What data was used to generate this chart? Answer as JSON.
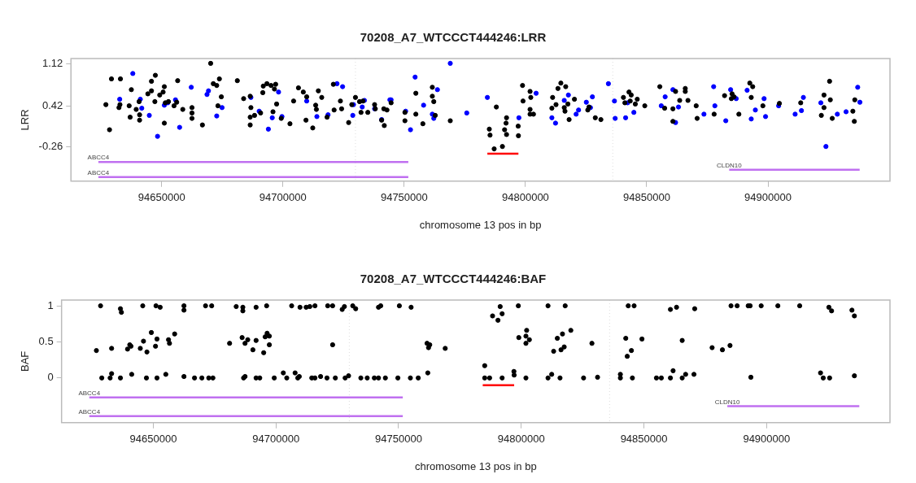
{
  "chart_data": [
    {
      "type": "scatter",
      "title": "70208_A7_WTCCCT444246:LRR",
      "xlabel": "chromosome 13 pos in bp",
      "ylabel": "LRR",
      "xlim": [
        94612600,
        94950300
      ],
      "xticks": [
        94650000,
        94700000,
        94750000,
        94800000,
        94850000,
        94900000
      ],
      "ylim": [
        -0.84,
        1.21
      ],
      "yticks": [
        -0.26,
        0.42,
        1.12
      ],
      "grid": false,
      "legend": false,
      "ref_lines": [
        {
          "axis": "x",
          "value": 94729900,
          "color": "#dddddd",
          "line_style": "dotted"
        },
        {
          "axis": "x",
          "value": 94836000,
          "color": "#dddddd",
          "line_style": "dotted"
        }
      ],
      "series": [
        {
          "color": "#000000",
          "marker": "circle",
          "x": [
            94627000,
            94628500,
            94629300,
            94632400,
            94633000,
            94632800,
            94636600,
            94637000,
            94637500,
            94639500,
            94640700,
            94640900,
            94640900,
            94644300,
            94645800,
            94645800,
            94647200,
            94647400,
            94649200,
            94650600,
            94651100,
            94651500,
            94651100,
            94652800,
            94655100,
            94656200,
            94656600,
            94658700,
            94662500,
            94662500,
            94662500,
            94666800,
            94670200,
            94671300,
            94672700,
            94673800,
            94673200,
            94674600,
            94681200,
            94683800,
            94686500,
            94686800,
            94686500,
            94686500,
            94688300,
            94690800,
            94691700,
            94691900,
            94693400,
            94695100,
            94697000,
            94696500,
            94697400,
            94695900,
            94699300,
            94702900,
            94704400,
            94706400,
            94708400,
            94709800,
            94709500,
            94712300,
            94713500,
            94713800,
            94714600,
            94716000,
            94718200,
            94720800,
            94721100,
            94723700,
            94724200,
            94727100,
            94728400,
            94729900,
            94731600,
            94732200,
            94733000,
            94735000,
            94737800,
            94738100,
            94740700,
            94741800,
            94741600,
            94742900,
            94744600,
            94750300,
            94750300,
            94754800,
            94754800,
            94757700,
            94761600,
            94761600,
            94762200,
            94762800,
            94769000,
            94788000,
            94785100,
            94785400,
            94787100,
            94790500,
            94792200,
            94792000,
            94791400,
            94792200,
            94797000,
            94797100,
            94798800,
            94799000,
            94801900,
            94802200,
            94801900,
            94801900,
            94803300,
            94811200,
            94810900,
            94812600,
            94813400,
            94814600,
            94816600,
            94816000,
            94816300,
            94817500,
            94818000,
            94820200,
            94825700,
            94826200,
            94828800,
            94831100,
            94840400,
            94841000,
            94842700,
            94843600,
            94843200,
            94845300,
            94846100,
            94849200,
            94855400,
            94857400,
            94860800,
            94860800,
            94861900,
            94863600,
            94865900,
            94865900,
            94867000,
            94870400,
            94870800,
            94877800,
            94882100,
            94885200,
            94884900,
            94886000,
            94888000,
            94892500,
            94893700,
            94893100,
            94897900,
            94904700,
            94913500,
            94922000,
            94923100,
            94923100,
            94925400,
            94925700,
            94926500,
            94935000,
            94935600,
            94935800
          ],
          "values": [
            0.44,
            0.02,
            0.87,
            0.39,
            0.87,
            0.44,
            0.42,
            0.23,
            0.69,
            0.36,
            0.49,
            0.27,
            0.18,
            0.62,
            0.83,
            0.67,
            0.49,
            0.93,
            0.6,
            0.65,
            0.74,
            0.47,
            0.13,
            0.49,
            0.42,
            0.48,
            0.84,
            0.36,
            0.39,
            0.3,
            0.21,
            0.1,
            1.13,
            0.79,
            0.76,
            0.87,
            0.42,
            0.57,
            0.84,
            0.54,
            0.58,
            0.39,
            0.23,
            0.1,
            0.26,
            0.3,
            0.64,
            0.75,
            0.79,
            0.76,
            0.78,
            0.7,
            0.45,
            0.32,
            0.21,
            0.12,
            0.5,
            0.72,
            0.65,
            0.57,
            0.18,
            0.05,
            0.43,
            0.36,
            0.67,
            0.56,
            0.23,
            0.78,
            0.35,
            0.5,
            0.37,
            0.14,
            0.44,
            0.56,
            0.49,
            0.31,
            0.5,
            0.31,
            0.44,
            0.37,
            0.18,
            0.09,
            0.37,
            0.35,
            0.47,
            0.31,
            0.17,
            0.63,
            0.28,
            0.12,
            0.73,
            0.58,
            0.49,
            0.26,
            0.17,
            0.4,
            0.03,
            -0.07,
            -0.3,
            -0.26,
            0.22,
            0.13,
            0.02,
            -0.06,
            0.08,
            -0.08,
            0.76,
            0.5,
            0.66,
            0.56,
            0.36,
            0.28,
            0.28,
            0.56,
            0.38,
            0.44,
            0.71,
            0.8,
            0.74,
            0.39,
            0.33,
            0.45,
            0.19,
            0.53,
            0.35,
            0.4,
            0.22,
            0.19,
            0.56,
            0.47,
            0.65,
            0.6,
            0.5,
            0.45,
            0.53,
            0.42,
            0.74,
            0.38,
            0.37,
            0.16,
            0.66,
            0.51,
            0.71,
            0.66,
            0.51,
            0.42,
            0.21,
            0.28,
            0.59,
            0.62,
            0.54,
            0.57,
            0.28,
            0.8,
            0.74,
            0.56,
            0.42,
            0.46,
            0.47,
            0.26,
            0.6,
            0.39,
            0.83,
            0.52,
            0.21,
            0.33,
            0.16,
            0.52
          ]
        },
        {
          "color": "#0000ff",
          "marker": "circle",
          "x": [
            94638100,
            94632700,
            94641200,
            94641800,
            94644900,
            94648300,
            94651100,
            94652500,
            94655700,
            94657400,
            94662200,
            94668700,
            94669300,
            94672700,
            94674900,
            94686800,
            94690200,
            94694000,
            94695600,
            94698200,
            94699600,
            94709800,
            94714000,
            94718600,
            94722300,
            94724600,
            94728800,
            94729100,
            94732700,
            94733600,
            94737800,
            94740700,
            94744100,
            94744600,
            94750600,
            94752600,
            94754500,
            94758000,
            94761600,
            94762200,
            94763700,
            94769000,
            94775800,
            94784300,
            94797300,
            94804400,
            94810900,
            94812400,
            94816000,
            94817700,
            94820900,
            94821900,
            94825100,
            94826800,
            94827600,
            94834200,
            94836700,
            94837000,
            94841300,
            94842100,
            94844700,
            94856000,
            94857600,
            94860800,
            94861900,
            94863100,
            94873600,
            94877600,
            94878100,
            94882600,
            94884600,
            94886900,
            94891400,
            94893100,
            94894800,
            94898400,
            94899000,
            94904400,
            94911200,
            94913800,
            94914600,
            94921800,
            94923900,
            94928600,
            94932200,
            94937000,
            94937900
          ],
          "values": [
            0.96,
            0.53,
            0.53,
            0.38,
            0.26,
            -0.09,
            0.43,
            0.47,
            0.52,
            0.06,
            0.73,
            0.61,
            0.67,
            0.25,
            0.39,
            0.56,
            0.33,
            0.03,
            0.22,
            0.65,
            0.24,
            0.5,
            0.24,
            0.27,
            0.79,
            0.74,
            0.26,
            0.44,
            0.4,
            0.51,
            0.37,
            0.19,
            0.52,
            0.52,
            0.33,
            0.02,
            0.9,
            0.43,
            0.28,
            0.21,
            0.69,
            1.13,
            0.3,
            0.56,
            0.22,
            0.63,
            0.22,
            0.13,
            0.51,
            0.6,
            0.28,
            0.35,
            0.48,
            0.39,
            0.57,
            0.79,
            0.5,
            0.21,
            0.22,
            0.47,
            0.31,
            0.42,
            0.57,
            0.69,
            0.14,
            0.4,
            0.28,
            0.74,
            0.42,
            0.17,
            0.69,
            0.54,
            0.68,
            0.2,
            0.35,
            0.54,
            0.24,
            0.42,
            0.28,
            0.34,
            0.56,
            0.47,
            -0.26,
            0.28,
            0.32,
            0.73,
            0.48
          ]
        },
        {
          "type": "line",
          "marker": "none",
          "color": "#ff0000",
          "x": [
            94784300,
            94797100
          ],
          "values": [
            -0.38,
            -0.38
          ]
        },
        {
          "type": "line",
          "marker": "none",
          "name": "ABCC4",
          "color": "#c070f0",
          "x": [
            94623900,
            94751700
          ],
          "values": [
            -0.52,
            -0.52
          ]
        },
        {
          "type": "line",
          "marker": "none",
          "name": "ABCC4",
          "color": "#c070f0",
          "x": [
            94623900,
            94751700
          ],
          "values": [
            -0.77,
            -0.77
          ]
        },
        {
          "type": "line",
          "marker": "none",
          "name": "CLDN10",
          "color": "#c070f0",
          "x": [
            94884000,
            94937800
          ],
          "values": [
            -0.65,
            -0.65
          ]
        }
      ]
    },
    {
      "type": "scatter",
      "title": "70208_A7_WTCCCT444246:BAF",
      "xlabel": "chromosome 13 pos in bp",
      "ylabel": "BAF",
      "xlim": [
        94612600,
        94950300
      ],
      "xticks": [
        94650000,
        94700000,
        94750000,
        94800000,
        94850000,
        94900000
      ],
      "ylim": [
        -0.62,
        1.08
      ],
      "yticks": [
        0,
        0.5,
        1
      ],
      "grid": false,
      "legend": false,
      "ref_lines": [
        {
          "axis": "x",
          "value": 94729900,
          "color": "#dddddd",
          "line_style": "dotted"
        },
        {
          "axis": "x",
          "value": 94836000,
          "color": "#dddddd",
          "line_style": "dotted"
        }
      ],
      "series": [
        {
          "color": "#000000",
          "marker": "circle",
          "x": [
            94628500,
            94636600,
            94637000,
            94645700,
            94651100,
            94652800,
            94662500,
            94662500,
            94671300,
            94673800,
            94683800,
            94686500,
            94686500,
            94691900,
            94696200,
            94706400,
            94709800,
            94712300,
            94713800,
            94715900,
            94721100,
            94723100,
            94727000,
            94727900,
            94731300,
            94732500,
            94741800,
            94742700,
            94750300,
            94755100,
            94626800,
            94633000,
            94639500,
            94640400,
            94640900,
            94644700,
            94646000,
            94647400,
            94649200,
            94650900,
            94651500,
            94656200,
            94656600,
            94658700,
            94681100,
            94686200,
            94687400,
            94688500,
            94690600,
            94691900,
            94695000,
            94695600,
            94696400,
            94697300,
            94697300,
            94723100,
            94761600,
            94762200,
            94762700,
            94769000,
            94629000,
            94632400,
            94633000,
            94636600,
            94641200,
            94647200,
            94651500,
            94655100,
            94662500,
            94666800,
            94669800,
            94672600,
            94674300,
            94686800,
            94687400,
            94691900,
            94693400,
            94699300,
            94703000,
            94704400,
            94707800,
            94708900,
            94709500,
            94714600,
            94715900,
            94718200,
            94720800,
            94724200,
            94728200,
            94729600,
            94734600,
            94737200,
            94740100,
            94741800,
            94744600,
            94749700,
            94754800,
            94758000,
            94761900,
            94791400,
            94788300,
            94792200,
            94790500,
            94798800,
            94810900,
            94817900,
            94843600,
            94846000,
            94860800,
            94863300,
            94870700,
            94885500,
            94888000,
            94892500,
            94893300,
            94897800,
            94904600,
            94913500,
            94925400,
            94926500,
            94934800,
            94935800,
            94799000,
            94802200,
            94801900,
            94803300,
            94801900,
            94814700,
            94816800,
            94820200,
            94813200,
            94816200,
            94817500,
            94828800,
            94842600,
            94849200,
            94844900,
            94843200,
            94865600,
            94877800,
            94882000,
            94885100,
            94785100,
            94785100,
            94787100,
            94792200,
            94797000,
            94797100,
            94801900,
            94810900,
            94812400,
            94815800,
            94825400,
            94831100,
            94840400,
            94840400,
            94845300,
            94855100,
            94857100,
            94860800,
            94861900,
            94865600,
            94867000,
            94870400,
            94893600,
            94922000,
            94923100,
            94925700,
            94935800
          ],
          "values": [
            1.0,
            0.96,
            0.91,
            1.0,
            1.0,
            0.98,
            1.0,
            0.94,
            1.0,
            1.0,
            0.99,
            0.98,
            0.93,
            0.98,
            1.0,
            1.0,
            0.98,
            0.98,
            0.99,
            1.0,
            1.0,
            1.0,
            0.95,
            0.99,
            1.0,
            0.96,
            0.98,
            1.0,
            1.0,
            0.98,
            0.38,
            0.41,
            0.4,
            0.46,
            0.44,
            0.41,
            0.51,
            0.36,
            0.63,
            0.44,
            0.54,
            0.53,
            0.48,
            0.61,
            0.48,
            0.56,
            0.48,
            0.53,
            0.39,
            0.52,
            0.35,
            0.57,
            0.62,
            0.58,
            0.46,
            0.46,
            0.48,
            0.42,
            0.46,
            0.41,
            0,
            0,
            0.06,
            0,
            0.05,
            0,
            0,
            0.05,
            0.02,
            0,
            0,
            0,
            0,
            0,
            0.02,
            0,
            0,
            0,
            0.07,
            0,
            0.07,
            0,
            0.02,
            0,
            0,
            0.02,
            0,
            0,
            0,
            0.03,
            0,
            0,
            0,
            0,
            0,
            0,
            0,
            0,
            0.07,
            0.99,
            0.86,
            0.89,
            0.8,
            1.0,
            1.0,
            1.0,
            1.0,
            1.0,
            0.95,
            0.98,
            0.96,
            1.0,
            1.0,
            1.0,
            1.0,
            1.0,
            1.0,
            1.0,
            0.98,
            0.93,
            0.94,
            0.86,
            0.56,
            0.66,
            0.58,
            0.53,
            0.48,
            0.55,
            0.61,
            0.66,
            0.37,
            0.39,
            0.43,
            0.48,
            0.55,
            0.54,
            0.38,
            0.3,
            0.52,
            0.42,
            0.39,
            0.45,
            0.17,
            0,
            0,
            0,
            0.09,
            0.04,
            0,
            0,
            0.05,
            0,
            0,
            0.01,
            0.05,
            0,
            0,
            0,
            0,
            0,
            0.1,
            0,
            0.05,
            0.05,
            0.01,
            0.07,
            0,
            0,
            0.03
          ]
        },
        {
          "type": "line",
          "marker": "none",
          "color": "#ff0000",
          "x": [
            94784300,
            94797100
          ],
          "values": [
            -0.1,
            -0.1
          ]
        },
        {
          "type": "line",
          "marker": "none",
          "name": "ABCC4",
          "color": "#c070f0",
          "x": [
            94623900,
            94751700
          ],
          "values": [
            -0.27,
            -0.27
          ]
        },
        {
          "type": "line",
          "marker": "none",
          "name": "ABCC4",
          "color": "#c070f0",
          "x": [
            94623900,
            94751700
          ],
          "values": [
            -0.53,
            -0.53
          ]
        },
        {
          "type": "line",
          "marker": "none",
          "name": "CLDN10",
          "color": "#c070f0",
          "x": [
            94884000,
            94937800
          ],
          "values": [
            -0.39,
            -0.39
          ]
        }
      ]
    }
  ]
}
